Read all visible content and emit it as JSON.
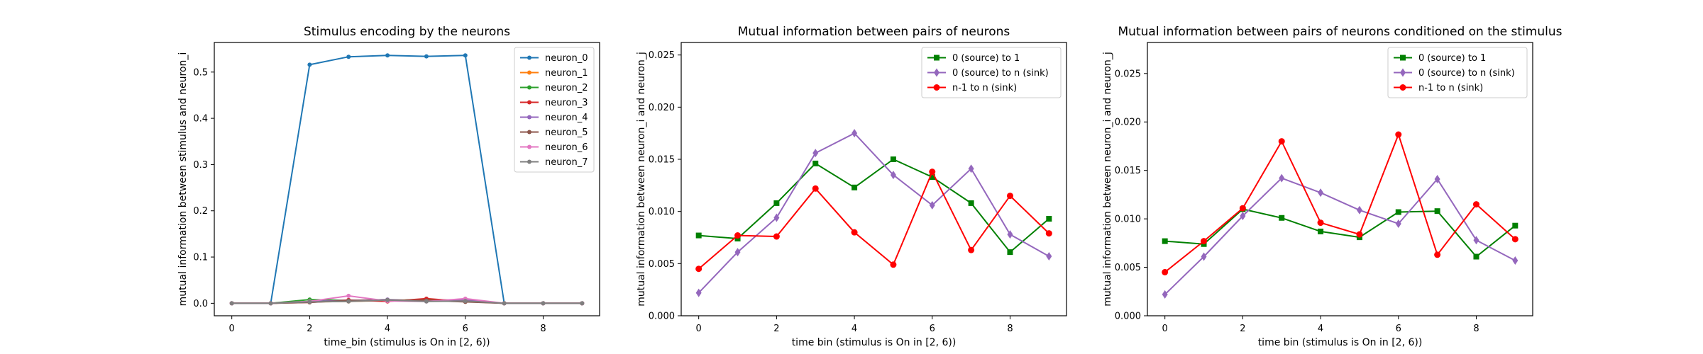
{
  "chart_data": [
    {
      "type": "line",
      "title": "Stimulus encoding by the neurons",
      "xlabel": "time_bin (stimulus is On in [2, 6))",
      "ylabel": "mutual information between stimulus and neuron_i",
      "xlim": [
        -0.45,
        9.45
      ],
      "ylim": [
        -0.027,
        0.564
      ],
      "xticks": [
        0,
        2,
        4,
        6,
        8
      ],
      "yticks": [
        0.0,
        0.1,
        0.2,
        0.3,
        0.4,
        0.5
      ],
      "ytick_format": 1,
      "grid": false,
      "legend_position": "top-right",
      "x": [
        0,
        1,
        2,
        3,
        4,
        5,
        6,
        7,
        8,
        9
      ],
      "series": [
        {
          "name": "neuron_0",
          "color": "#1f77b4",
          "marker": "point",
          "values": [
            0.0,
            0.0,
            0.516,
            0.533,
            0.536,
            0.534,
            0.536,
            0.0,
            0.0,
            0.0
          ]
        },
        {
          "name": "neuron_1",
          "color": "#ff7f0e",
          "marker": "point",
          "values": [
            0.0,
            0.0,
            0.003,
            0.004,
            0.006,
            0.008,
            0.006,
            0.0,
            0.0,
            0.0
          ]
        },
        {
          "name": "neuron_2",
          "color": "#2ca02c",
          "marker": "point",
          "values": [
            0.0,
            0.0,
            0.008,
            0.006,
            0.005,
            0.009,
            0.005,
            0.0,
            0.0,
            0.0
          ]
        },
        {
          "name": "neuron_3",
          "color": "#d62728",
          "marker": "point",
          "values": [
            0.0,
            0.0,
            0.002,
            0.007,
            0.004,
            0.01,
            0.004,
            0.0,
            0.0,
            0.0
          ]
        },
        {
          "name": "neuron_4",
          "color": "#9467bd",
          "marker": "point",
          "values": [
            0.0,
            0.0,
            0.004,
            0.006,
            0.008,
            0.005,
            0.007,
            0.0,
            0.0,
            0.0
          ]
        },
        {
          "name": "neuron_5",
          "color": "#8c564b",
          "marker": "point",
          "values": [
            0.0,
            0.0,
            0.002,
            0.006,
            0.007,
            0.006,
            0.003,
            0.0,
            0.0,
            0.0
          ]
        },
        {
          "name": "neuron_6",
          "color": "#e377c2",
          "marker": "point",
          "values": [
            0.0,
            0.0,
            0.004,
            0.016,
            0.005,
            0.004,
            0.01,
            0.0,
            0.0,
            0.0
          ]
        },
        {
          "name": "neuron_7",
          "color": "#7f7f7f",
          "marker": "point",
          "values": [
            0.0,
            0.0,
            0.003,
            0.004,
            0.007,
            0.004,
            0.005,
            0.0,
            0.0,
            0.0
          ]
        }
      ]
    },
    {
      "type": "line",
      "title": "Mutual information between pairs of neurons",
      "xlabel": "time bin (stimulus is On in [2, 6))",
      "ylabel": "mutual information between neuron_i and neuron_j",
      "xlim": [
        -0.45,
        9.45
      ],
      "ylim": [
        0.0,
        0.0262
      ],
      "xticks": [
        0,
        2,
        4,
        6,
        8
      ],
      "yticks": [
        0.0,
        0.005,
        0.01,
        0.015,
        0.02,
        0.025
      ],
      "ytick_format": 3,
      "grid": false,
      "legend_position": "top-right",
      "x": [
        0,
        1,
        2,
        3,
        4,
        5,
        6,
        7,
        8,
        9
      ],
      "series": [
        {
          "name": "0 (source) to 1",
          "color": "#008000",
          "marker": "square",
          "values": [
            0.0077,
            0.0074,
            0.0108,
            0.0146,
            0.0123,
            0.015,
            0.0133,
            0.0108,
            0.0061,
            0.0093
          ]
        },
        {
          "name": "0 (source) to n (sink)",
          "color": "#9467bd",
          "marker": "diamond",
          "values": [
            0.0022,
            0.0061,
            0.0094,
            0.0156,
            0.0175,
            0.0135,
            0.0106,
            0.0141,
            0.0078,
            0.0057
          ]
        },
        {
          "name": "n-1 to n (sink)",
          "color": "#ff0000",
          "marker": "circle",
          "values": [
            0.0045,
            0.0077,
            0.0076,
            0.0122,
            0.008,
            0.0049,
            0.0138,
            0.0063,
            0.0115,
            0.0079
          ]
        }
      ]
    },
    {
      "type": "line",
      "title": "Mutual information between pairs of neurons conditioned on the stimulus",
      "xlabel": "time bin (stimulus is On in [2, 6))",
      "ylabel": "mutual information between neuron_i and neuron_j",
      "xlim": [
        -0.45,
        9.45
      ],
      "ylim": [
        0.0,
        0.0282
      ],
      "xticks": [
        0,
        2,
        4,
        6,
        8
      ],
      "yticks": [
        0.0,
        0.005,
        0.01,
        0.015,
        0.02,
        0.025
      ],
      "ytick_format": 3,
      "grid": false,
      "legend_position": "top-right",
      "x": [
        0,
        1,
        2,
        3,
        4,
        5,
        6,
        7,
        8,
        9
      ],
      "series": [
        {
          "name": "0 (source) to 1",
          "color": "#008000",
          "marker": "square",
          "values": [
            0.0077,
            0.0074,
            0.011,
            0.0101,
            0.0087,
            0.0081,
            0.0107,
            0.0108,
            0.0061,
            0.0093
          ]
        },
        {
          "name": "0 (source) to n (sink)",
          "color": "#9467bd",
          "marker": "diamond",
          "values": [
            0.0022,
            0.0061,
            0.0103,
            0.0142,
            0.0127,
            0.0109,
            0.0095,
            0.0141,
            0.0078,
            0.0057
          ]
        },
        {
          "name": "n-1 to n (sink)",
          "color": "#ff0000",
          "marker": "circle",
          "values": [
            0.0045,
            0.0077,
            0.0111,
            0.018,
            0.0096,
            0.0084,
            0.0187,
            0.0063,
            0.0115,
            0.0079
          ]
        }
      ]
    }
  ]
}
